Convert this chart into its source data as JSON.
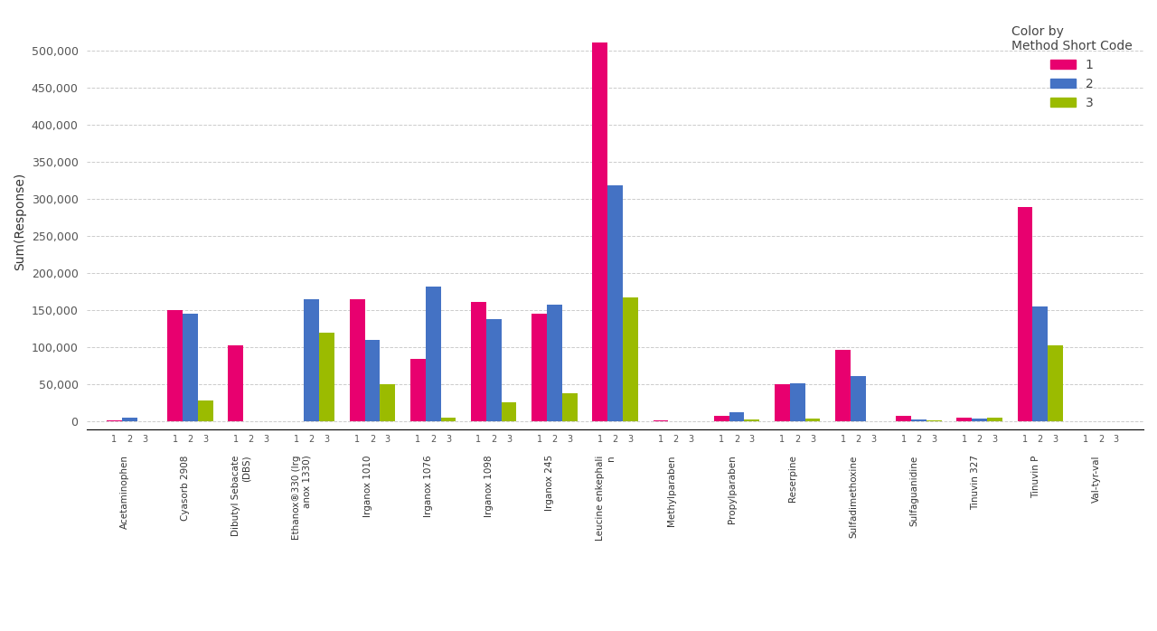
{
  "title": "",
  "ylabel": "Sum(Response)",
  "xlabel": "",
  "legend_title": "Color by\nMethod Short Code",
  "legend_labels": [
    "1",
    "2",
    "3"
  ],
  "colors": [
    "#E8006F",
    "#4472C4",
    "#9BBB00"
  ],
  "background_color": "#FFFFFF",
  "grid_color": "#CCCCCC",
  "analytes": [
    "Acetaminophen",
    "Cyasorb 2908",
    "Dibutyl Sebacate\n(DBS)",
    "Ethanox®330 (Irg\nanox 1330)",
    "Irganox 1010",
    "Irganox 1076",
    "Irganox 1098",
    "Irganox 245",
    "Leucine enkephali\nn",
    "Methylparaben",
    "Propylparaben",
    "Reserpine",
    "Sulfadimethoxine",
    "Sulfaguanidine",
    "Tinuvin 327",
    "Tinuvin P",
    "Val-tyr-val"
  ],
  "values": {
    "Acetaminophen": [
      2000,
      5000,
      0
    ],
    "Cyasorb 2908": [
      150000,
      145000,
      28000
    ],
    "Dibutyl Sebacate\n(DBS)": [
      103000,
      0,
      0
    ],
    "Ethanox®330 (Irg\nanox 1330)": [
      0,
      165000,
      120000
    ],
    "Irganox 1010": [
      165000,
      110000,
      50000
    ],
    "Irganox 1076": [
      84000,
      182000,
      5000
    ],
    "Irganox 1098": [
      161000,
      138000,
      26000
    ],
    "Irganox 245": [
      145000,
      158000,
      38000
    ],
    "Leucine enkephali\nn": [
      511000,
      318000,
      168000
    ],
    "Methylparaben": [
      2000,
      0,
      0
    ],
    "Propylparaben": [
      8000,
      13000,
      3000
    ],
    "Reserpine": [
      50000,
      52000,
      4000
    ],
    "Sulfadimethoxine": [
      97000,
      62000,
      0
    ],
    "Sulfaguanidine": [
      8000,
      3000,
      2000
    ],
    "Tinuvin 327": [
      5000,
      4000,
      5000
    ],
    "Tinuvin P": [
      289000,
      155000,
      103000
    ],
    "Val-tyr-val": [
      0,
      0,
      0
    ]
  },
  "ylim": [
    0,
    550000
  ],
  "yticks": [
    0,
    50000,
    100000,
    150000,
    200000,
    250000,
    300000,
    350000,
    400000,
    450000,
    500000
  ],
  "bar_width": 0.25,
  "figsize": [
    12.8,
    6.98
  ],
  "dpi": 100
}
